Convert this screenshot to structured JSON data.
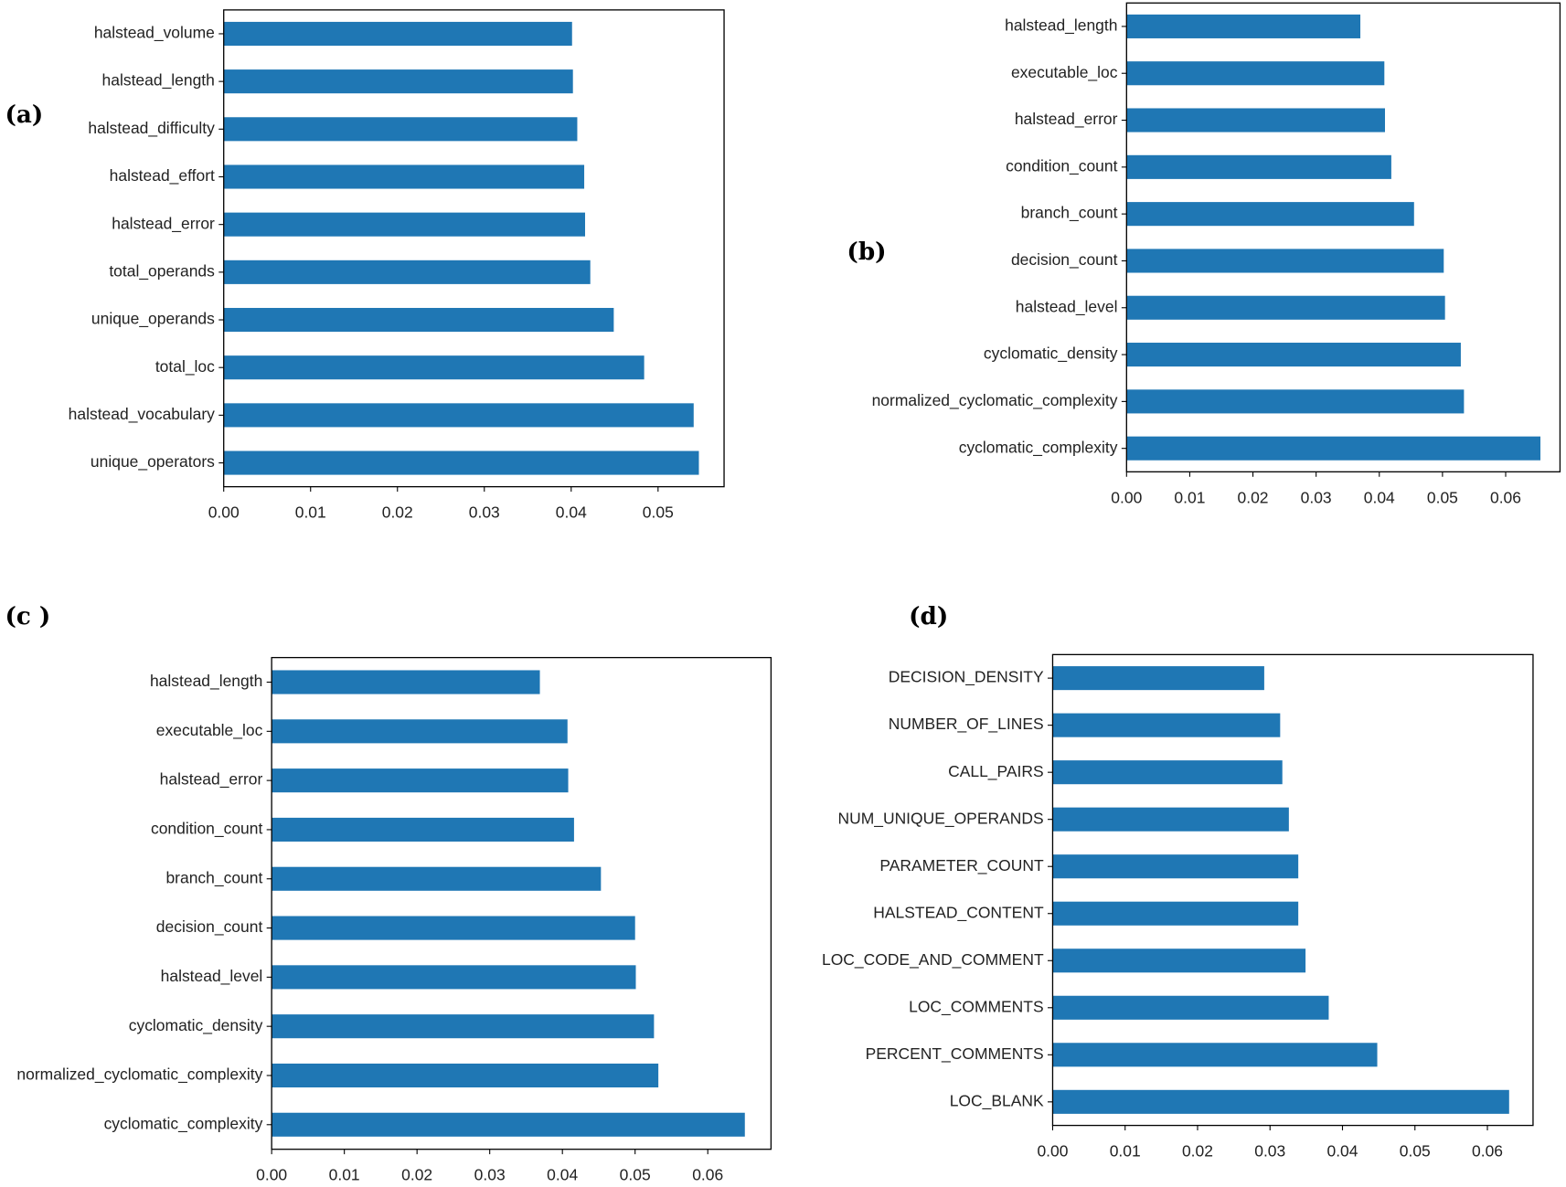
{
  "chart_data": [
    {
      "type": "bar",
      "orientation": "horizontal",
      "panel_label": "(a)",
      "color": "#1f77b4",
      "categories": [
        "halstead_volume",
        "halstead_length",
        "halstead_difficulty",
        "halstead_effort",
        "halstead_error",
        "total_operands",
        "unique_operands",
        "total_loc",
        "halstead_vocabulary",
        "unique_operators"
      ],
      "values": [
        0.0401,
        0.0402,
        0.0407,
        0.0415,
        0.0416,
        0.0422,
        0.0449,
        0.0484,
        0.0541,
        0.0547
      ],
      "xlim": [
        0,
        0.0576
      ],
      "xticks": [
        {
          "value": 0,
          "label": "0.00"
        },
        {
          "value": 0.01,
          "label": "0.01"
        },
        {
          "value": 0.02,
          "label": "0.02"
        },
        {
          "value": 0.03,
          "label": "0.03"
        },
        {
          "value": 0.04,
          "label": "0.04"
        },
        {
          "value": 0.05,
          "label": "0.05"
        }
      ]
    },
    {
      "type": "bar",
      "orientation": "horizontal",
      "panel_label": "(b)",
      "color": "#1f77b4",
      "categories": [
        "halstead_length",
        "executable_loc",
        "halstead_error",
        "condition_count",
        "branch_count",
        "decision_count",
        "halstead_level",
        "cyclomatic_density",
        "normalized_cyclomatic_complexity",
        "cyclomatic_complexity"
      ],
      "values": [
        0.037,
        0.0408,
        0.0409,
        0.0419,
        0.0455,
        0.0502,
        0.0504,
        0.0529,
        0.0534,
        0.0655
      ],
      "xlim": [
        0,
        0.0686
      ],
      "xticks": [
        {
          "value": 0,
          "label": "0.00"
        },
        {
          "value": 0.01,
          "label": "0.01"
        },
        {
          "value": 0.02,
          "label": "0.02"
        },
        {
          "value": 0.03,
          "label": "0.03"
        },
        {
          "value": 0.04,
          "label": "0.04"
        },
        {
          "value": 0.05,
          "label": "0.05"
        },
        {
          "value": 0.06,
          "label": "0.06"
        }
      ]
    },
    {
      "type": "bar",
      "orientation": "horizontal",
      "panel_label": "(c )",
      "color": "#1f77b4",
      "categories": [
        "halstead_length",
        "executable_loc",
        "halstead_error",
        "condition_count",
        "branch_count",
        "decision_count",
        "halstead_level",
        "cyclomatic_density",
        "normalized_cyclomatic_complexity",
        "cyclomatic_complexity"
      ],
      "values": [
        0.0369,
        0.0407,
        0.0408,
        0.0416,
        0.0453,
        0.05,
        0.0501,
        0.0526,
        0.0532,
        0.0651
      ],
      "xlim": [
        0,
        0.0687
      ],
      "xticks": [
        {
          "value": 0,
          "label": "0.00"
        },
        {
          "value": 0.01,
          "label": "0.01"
        },
        {
          "value": 0.02,
          "label": "0.02"
        },
        {
          "value": 0.03,
          "label": "0.03"
        },
        {
          "value": 0.04,
          "label": "0.04"
        },
        {
          "value": 0.05,
          "label": "0.05"
        },
        {
          "value": 0.06,
          "label": "0.06"
        }
      ]
    },
    {
      "type": "bar",
      "orientation": "horizontal",
      "panel_label": "(d)",
      "color": "#1f77b4",
      "categories": [
        "DECISION_DENSITY",
        "NUMBER_OF_LINES",
        "CALL_PAIRS",
        "NUM_UNIQUE_OPERANDS",
        "PARAMETER_COUNT",
        "HALSTEAD_CONTENT",
        "LOC_CODE_AND_COMMENT",
        "LOC_COMMENTS",
        "PERCENT_COMMENTS",
        "LOC_BLANK"
      ],
      "values": [
        0.0292,
        0.0314,
        0.0317,
        0.0326,
        0.0339,
        0.0339,
        0.0349,
        0.0381,
        0.0448,
        0.063
      ],
      "xlim": [
        0,
        0.0663
      ],
      "xticks": [
        {
          "value": 0,
          "label": "0.00"
        },
        {
          "value": 0.01,
          "label": "0.01"
        },
        {
          "value": 0.02,
          "label": "0.02"
        },
        {
          "value": 0.03,
          "label": "0.03"
        },
        {
          "value": 0.04,
          "label": "0.04"
        },
        {
          "value": 0.05,
          "label": "0.05"
        },
        {
          "value": 0.06,
          "label": "0.06"
        }
      ]
    }
  ]
}
